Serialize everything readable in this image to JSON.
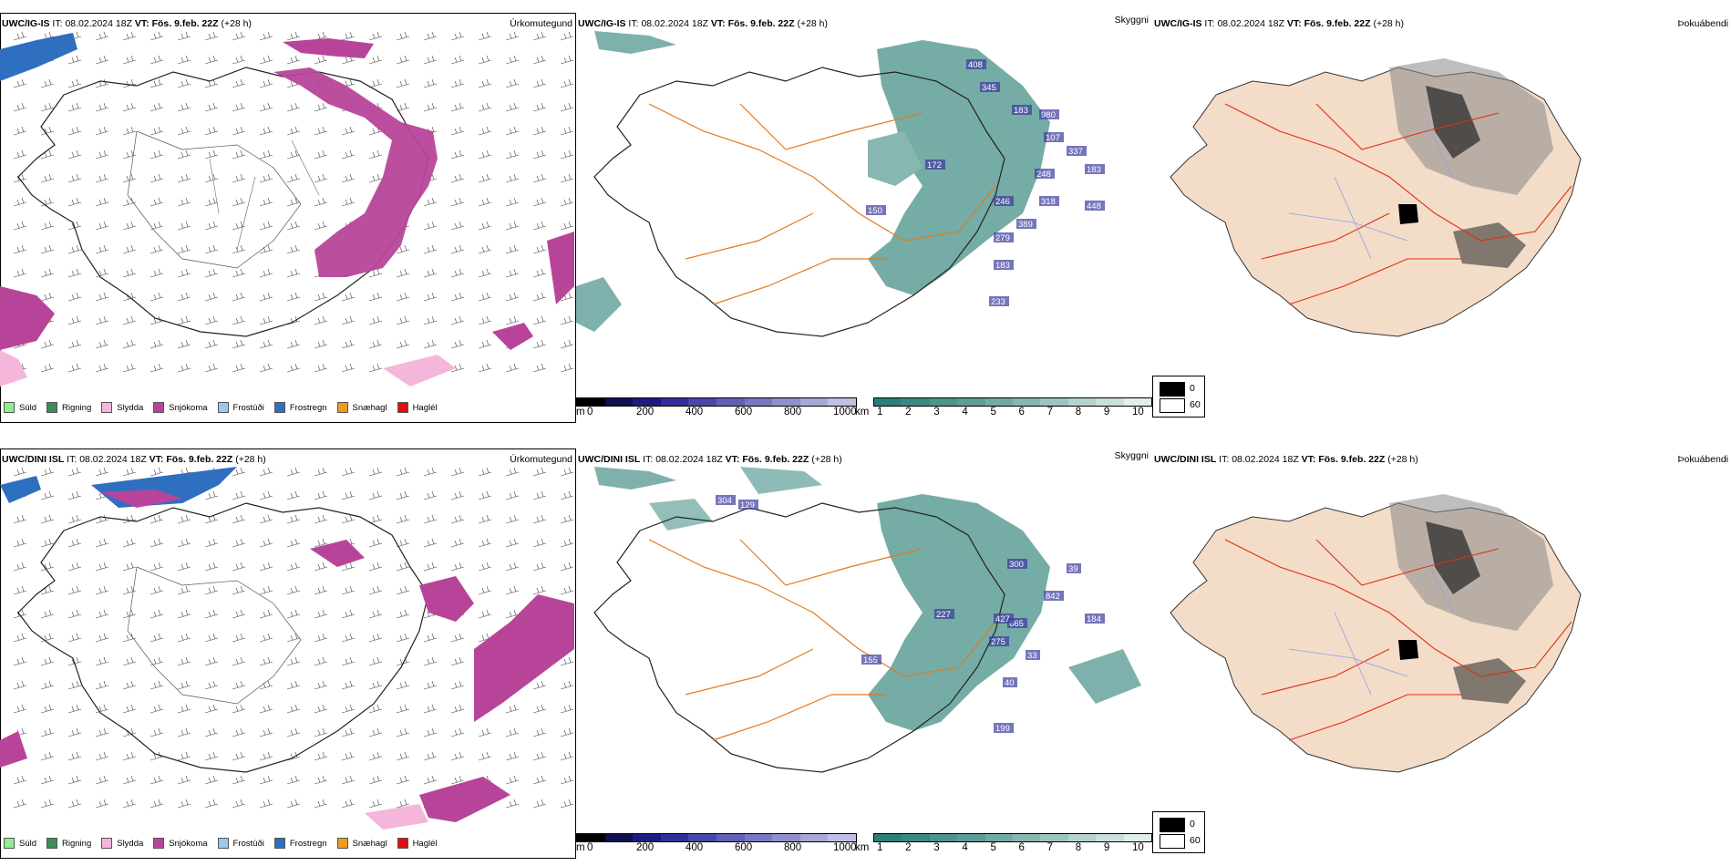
{
  "legend_items": [
    {
      "label": "Súld",
      "color": "#90ee90"
    },
    {
      "label": "Rigning",
      "color": "#3c8c5a"
    },
    {
      "label": "Slydda",
      "color": "#f4b6da"
    },
    {
      "label": "Snjókoma",
      "color": "#b8449a"
    },
    {
      "label": "Frostúði",
      "color": "#9cc8f0"
    },
    {
      "label": "Frostregn",
      "color": "#2f6fc0"
    },
    {
      "label": "Snæhagl",
      "color": "#f09a20"
    },
    {
      "label": "Haglél",
      "color": "#e01010"
    }
  ],
  "rows": [
    {
      "model": "UWC/IG-IS",
      "it_label": "IT:",
      "it_value": "08.02.2024 18Z",
      "vt_label": "VT:",
      "vt_value": "Fös. 9.feb. 22Z",
      "lead": "(+28 h)",
      "precip_labels": [],
      "cloud_labels": [
        "408",
        "345",
        "183",
        "980",
        "107",
        "337",
        "183",
        "172",
        "248",
        "318",
        "448",
        "246",
        "150",
        "389",
        "279",
        "183",
        "233"
      ]
    },
    {
      "model": "UWC/DINI ISL",
      "it_label": "IT:",
      "it_value": "08.02.2024 18Z",
      "vt_label": "VT:",
      "vt_value": "Fös. 9.feb. 22Z",
      "lead": "(+28 h)",
      "precip_labels": [],
      "cloud_labels": [
        "304",
        "129",
        "300",
        "39",
        "842",
        "184",
        "227",
        "665",
        "427",
        "275",
        "33",
        "155",
        "40",
        "199"
      ]
    }
  ],
  "panel_titles": {
    "precip": "Úrkomutegund",
    "cloud": "Skyggni",
    "fog": "Þokuábendi"
  },
  "cloud_colorbar": {
    "unit": "m",
    "ticks": [
      "0",
      "200",
      "400",
      "600",
      "800",
      "1000"
    ],
    "colors": [
      "#000000",
      "#101050",
      "#1c1c80",
      "#30309a",
      "#4848aa",
      "#6060b6",
      "#7878c2",
      "#9090cc",
      "#a8a8d8",
      "#c0c0e2"
    ]
  },
  "vis_colorbar": {
    "unit": "km",
    "ticks": [
      "1",
      "2",
      "3",
      "4",
      "5",
      "6",
      "7",
      "8",
      "9",
      "10"
    ],
    "colors": [
      "#2a8078",
      "#3a8a82",
      "#4c948c",
      "#5e9e97",
      "#72aaa3",
      "#88b7b1",
      "#9ec4bf",
      "#b4d2ce",
      "#cae0dd",
      "#e0eeec"
    ]
  },
  "fog_legend": {
    "low": "0",
    "high": "60"
  }
}
